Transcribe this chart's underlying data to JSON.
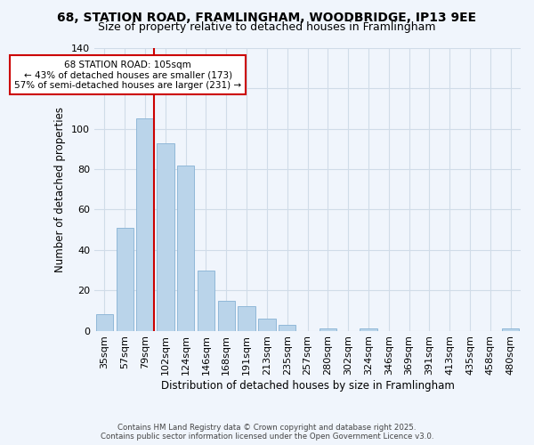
{
  "title1": "68, STATION ROAD, FRAMLINGHAM, WOODBRIDGE, IP13 9EE",
  "title2": "Size of property relative to detached houses in Framlingham",
  "xlabel": "Distribution of detached houses by size in Framlingham",
  "ylabel": "Number of detached properties",
  "bar_labels": [
    "35sqm",
    "57sqm",
    "79sqm",
    "102sqm",
    "124sqm",
    "146sqm",
    "168sqm",
    "191sqm",
    "213sqm",
    "235sqm",
    "257sqm",
    "280sqm",
    "302sqm",
    "324sqm",
    "346sqm",
    "369sqm",
    "391sqm",
    "413sqm",
    "435sqm",
    "458sqm",
    "480sqm"
  ],
  "bar_values": [
    8,
    51,
    105,
    93,
    82,
    30,
    15,
    12,
    6,
    3,
    0,
    1,
    0,
    1,
    0,
    0,
    0,
    0,
    0,
    0,
    1
  ],
  "bar_color": "#bad4ea",
  "bar_edge_color": "#90b8d8",
  "vline_color": "#cc0000",
  "ylim": [
    0,
    140
  ],
  "yticks": [
    0,
    20,
    40,
    60,
    80,
    100,
    120,
    140
  ],
  "annotation_title": "68 STATION ROAD: 105sqm",
  "annotation_line1": "← 43% of detached houses are smaller (173)",
  "annotation_line2": "57% of semi-detached houses are larger (231) →",
  "box_facecolor": "#ffffff",
  "box_edgecolor": "#cc0000",
  "footer1": "Contains HM Land Registry data © Crown copyright and database right 2025.",
  "footer2": "Contains public sector information licensed under the Open Government Licence v3.0.",
  "background_color": "#f0f5fc",
  "grid_color": "#d0dce8",
  "title1_fontsize": 10,
  "title2_fontsize": 9
}
